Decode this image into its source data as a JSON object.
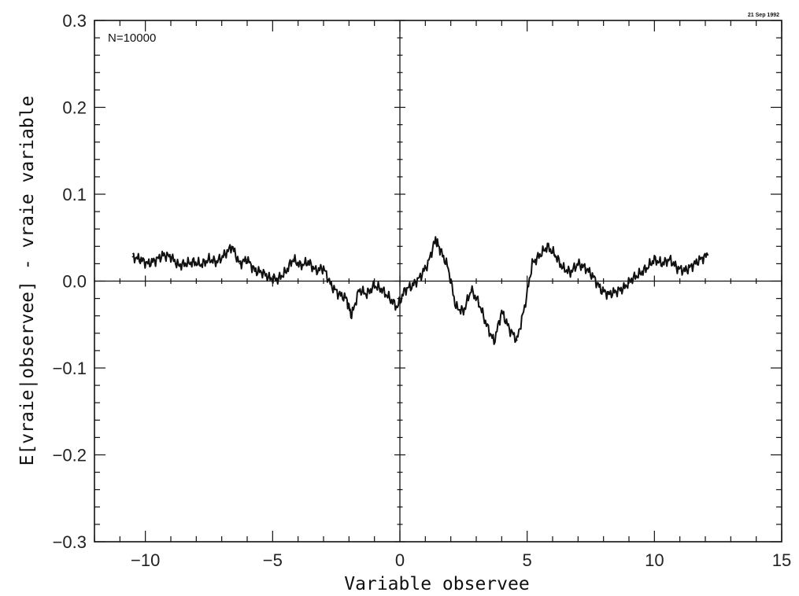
{
  "chart_data": {
    "type": "line",
    "title": "",
    "xlabel": "Variable observee",
    "ylabel": "E[vraie|observee] - vraie variable",
    "xlim": [
      -12,
      15
    ],
    "ylim": [
      -0.3,
      0.3
    ],
    "xticks": [
      -10,
      -5,
      0,
      5,
      10,
      15
    ],
    "xtick_labels": [
      "−10",
      "−5",
      "0",
      "5",
      "10",
      "15"
    ],
    "yticks": [
      -0.3,
      -0.2,
      -0.1,
      0.0,
      0.1,
      0.2,
      0.3
    ],
    "ytick_labels": [
      "−0.3",
      "−0.2",
      "−0.1",
      "0.0",
      "0.1",
      "0.2",
      "0.3"
    ],
    "annotation": "N=10000",
    "date_stamp": "21 Sep 1992",
    "grid": false,
    "series": [
      {
        "x": [
          -10.5,
          -10.2,
          -9.9,
          -9.6,
          -9.3,
          -9.0,
          -8.7,
          -8.4,
          -8.1,
          -7.8,
          -7.5,
          -7.2,
          -6.9,
          -6.6,
          -6.3,
          -6.0,
          -5.7,
          -5.4,
          -5.1,
          -4.8,
          -4.5,
          -4.2,
          -3.9,
          -3.6,
          -3.3,
          -3.0,
          -2.7,
          -2.4,
          -2.1,
          -1.9,
          -1.6,
          -1.3,
          -1.0,
          -0.7,
          -0.4,
          -0.1,
          0.2,
          0.5,
          0.8,
          1.1,
          1.4,
          1.6,
          1.9,
          2.2,
          2.5,
          2.8,
          3.1,
          3.4,
          3.7,
          4.0,
          4.3,
          4.6,
          4.9,
          5.2,
          5.5,
          5.8,
          6.1,
          6.4,
          6.7,
          7.0,
          7.3,
          7.6,
          7.9,
          8.2,
          8.5,
          8.8,
          9.1,
          9.4,
          9.7,
          10.0,
          10.3,
          10.6,
          10.9,
          11.2,
          11.5,
          11.8,
          12.1
        ],
        "values": [
          0.028,
          0.025,
          0.02,
          0.024,
          0.03,
          0.028,
          0.018,
          0.02,
          0.022,
          0.019,
          0.025,
          0.022,
          0.03,
          0.04,
          0.02,
          0.025,
          0.012,
          0.01,
          0.003,
          0.002,
          0.01,
          0.025,
          0.018,
          0.022,
          0.012,
          0.015,
          -0.005,
          -0.015,
          -0.02,
          -0.04,
          -0.01,
          -0.015,
          -0.005,
          -0.01,
          -0.02,
          -0.03,
          -0.01,
          -0.005,
          0.005,
          0.02,
          0.048,
          0.035,
          0.015,
          -0.03,
          -0.035,
          -0.01,
          -0.025,
          -0.05,
          -0.07,
          -0.035,
          -0.055,
          -0.068,
          -0.03,
          0.02,
          0.03,
          0.04,
          0.03,
          0.015,
          0.01,
          0.02,
          0.015,
          0.005,
          -0.01,
          -0.015,
          -0.012,
          -0.008,
          0.002,
          0.008,
          0.015,
          0.025,
          0.02,
          0.025,
          0.015,
          0.012,
          0.018,
          0.025,
          0.03
        ]
      }
    ]
  }
}
